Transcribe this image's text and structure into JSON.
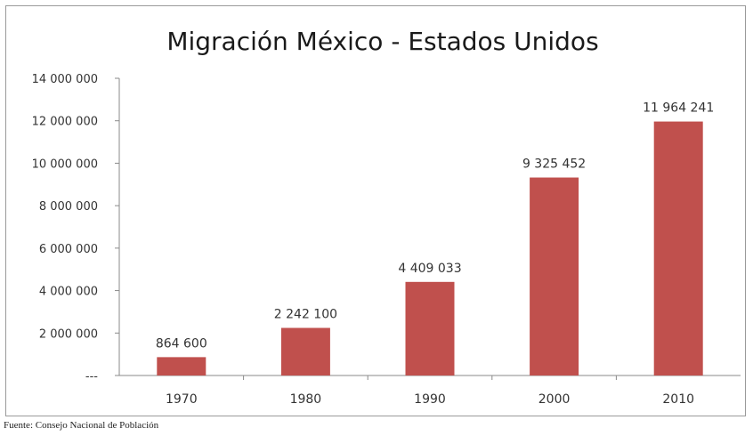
{
  "chart_data": {
    "type": "bar",
    "title": "Migración México - Estados Unidos",
    "categories": [
      "1970",
      "1980",
      "1990",
      "2000",
      "2010"
    ],
    "values": [
      864600,
      2242100,
      4409033,
      9325452,
      11964241
    ],
    "data_labels": [
      "864 600",
      "2 242 100",
      "4 409 033",
      "9 325 452",
      "11 964 241"
    ],
    "yticks": [
      0,
      2000000,
      4000000,
      6000000,
      8000000,
      10000000,
      12000000,
      14000000
    ],
    "ytick_labels": [
      "---",
      "2 000 000",
      "4 000 000",
      "6 000 000",
      "8 000 000",
      "10 000 000",
      "12 000 000",
      "14 000 000"
    ],
    "ylim": [
      0,
      14000000
    ],
    "xlabel": "",
    "ylabel": "",
    "grid": false,
    "legend": "none",
    "bar_color": "#c0504d"
  },
  "source_note": "Fuente: Consejo Nacional de Población"
}
